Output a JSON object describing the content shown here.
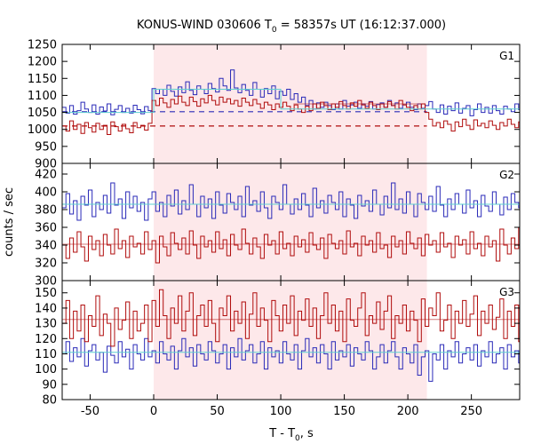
{
  "title": {
    "prefix": "KONUS-WIND 030606 T",
    "sub": "0",
    "suffix": " = 58357s UT (16:12:37.000)"
  },
  "xlabel": {
    "prefix": "T - T",
    "sub": "0",
    "suffix": ", s"
  },
  "ylabel": "counts / sec",
  "colors": {
    "red": "#b00c0c",
    "blue": "#2a2ab8",
    "fit": "#5fd0d0",
    "interval": "#fde8ea"
  },
  "chart_data": {
    "type": "line",
    "xlim": [
      -72,
      288
    ],
    "xticks": [
      -50,
      0,
      50,
      100,
      150,
      200,
      250
    ],
    "highlight_interval": [
      0,
      215
    ],
    "bin_width": 2.944,
    "panels": [
      {
        "label": "G1",
        "ylim": [
          900,
          1250
        ],
        "yticks": [
          900,
          950,
          1000,
          1050,
          1100,
          1150,
          1200,
          1250
        ],
        "background_dashed": {
          "blue": 1052,
          "red": 1010,
          "x_end": 215
        },
        "fit_lines": [
          {
            "color": "fit",
            "segments": [
              [
                -72,
                1050
              ],
              [
                0,
                1050
              ],
              [
                0,
                1118
              ],
              [
                100,
                1118
              ],
              [
                100,
                1060
              ],
              [
                288,
                1060
              ]
            ]
          },
          {
            "color": "red",
            "segments": [
              [
                110,
                1075
              ],
              [
                210,
                1075
              ]
            ]
          }
        ],
        "series": [
          {
            "color": "blue",
            "values": [
              1065,
              1048,
              1070,
              1045,
              1055,
              1080,
              1060,
              1050,
              1072,
              1045,
              1066,
              1054,
              1075,
              1043,
              1059,
              1070,
              1050,
              1062,
              1048,
              1071,
              1058,
              1046,
              1067,
              1055,
              1120,
              1105,
              1118,
              1100,
              1130,
              1112,
              1098,
              1125,
              1108,
              1140,
              1115,
              1102,
              1128,
              1118,
              1105,
              1135,
              1120,
              1110,
              1150,
              1128,
              1115,
              1175,
              1122,
              1108,
              1132,
              1115,
              1100,
              1138,
              1118,
              1095,
              1120,
              1105,
              1128,
              1090,
              1112,
              1100,
              1118,
              1088,
              1105,
              1080,
              1095,
              1070,
              1085,
              1060,
              1078,
              1065,
              1080,
              1070,
              1058,
              1075,
              1060,
              1085,
              1068,
              1072,
              1080,
              1062,
              1075,
              1068,
              1082,
              1060,
              1073,
              1078,
              1065,
              1085,
              1070,
              1078,
              1062,
              1072,
              1080,
              1065,
              1058,
              1075,
              1062,
              1070,
              1082,
              1060,
              1050,
              1072,
              1045,
              1068,
              1055,
              1078,
              1048,
              1062,
              1070,
              1040,
              1058,
              1075,
              1050,
              1065,
              1048,
              1070,
              1055,
              1045,
              1068,
              1060,
              1052,
              1075,
              1058
            ]
          },
          {
            "color": "red",
            "values": [
              1010,
              995,
              1025,
              1000,
              1015,
              988,
              1020,
              1005,
              992,
              1018,
              1000,
              1012,
              985,
              1022,
              1008,
              995,
              1015,
              1002,
              990,
              1020,
              1005,
              1012,
              998,
              1018,
              1085,
              1070,
              1092,
              1078,
              1065,
              1088,
              1075,
              1098,
              1080,
              1070,
              1095,
              1082,
              1068,
              1090,
              1078,
              1100,
              1085,
              1072,
              1095,
              1080,
              1090,
              1075,
              1085,
              1068,
              1092,
              1080,
              1070,
              1088,
              1075,
              1062,
              1080,
              1072,
              1058,
              1075,
              1065,
              1080,
              1068,
              1055,
              1072,
              1060,
              1050,
              1068,
              1055,
              1075,
              1062,
              1080,
              1070,
              1058,
              1075,
              1065,
              1082,
              1070,
              1060,
              1078,
              1068,
              1085,
              1072,
              1062,
              1080,
              1070,
              1058,
              1075,
              1065,
              1082,
              1070,
              1060,
              1085,
              1072,
              1065,
              1055,
              1070,
              1060,
              1075,
              1050,
              1030,
              1010,
              1020,
              1005,
              1025,
              1015,
              995,
              1022,
              1008,
              1030,
              1012,
              1000,
              1028,
              1010,
              1018,
              1005,
              1025,
              1012,
              1000,
              1020,
              1010,
              1030,
              1015,
              1005,
              1022
            ]
          }
        ]
      },
      {
        "label": "G2",
        "ylim": [
          300,
          432
        ],
        "yticks": [
          300,
          320,
          340,
          360,
          380,
          400,
          420
        ],
        "fit_lines": [
          {
            "color": "fit",
            "segments": [
              [
                -72,
                386
              ],
              [
                288,
                386
              ]
            ]
          },
          {
            "color": "red",
            "segments": [
              [
                -72,
                341
              ],
              [
                288,
                341
              ]
            ]
          }
        ],
        "series": [
          {
            "color": "blue",
            "values": [
              382,
              398,
              375,
              390,
              368,
              395,
              385,
              402,
              372,
              388,
              380,
              396,
              376,
              410,
              385,
              392,
              370,
              400,
              382,
              395,
              378,
              388,
              368,
              392,
              400,
              378,
              388,
              372,
              396,
              384,
              402,
              375,
              390,
              380,
              408,
              386,
              372,
              395,
              382,
              392,
              370,
              400,
              385,
              376,
              398,
              388,
              380,
              395,
              372,
              406,
              385,
              390,
              378,
              400,
              382,
              370,
              395,
              388,
              380,
              408,
              386,
              375,
              392,
              380,
              398,
              385,
              372,
              404,
              382,
              390,
              376,
              396,
              388,
              380,
              400,
              372,
              392,
              385,
              370,
              396,
              384,
              390,
              378,
              402,
              386,
              374,
              395,
              382,
              410,
              380,
              392,
              376,
              400,
              386,
              372,
              398,
              388,
              380,
              395,
              378,
              406,
              385,
              372,
              392,
              380,
              398,
              386,
              376,
              402,
              382,
              390,
              372,
              396,
              384,
              378,
              400,
              386,
              374,
              394,
              380,
              398,
              388,
              382
            ]
          },
          {
            "color": "red",
            "values": [
              340,
              325,
              348,
              332,
              355,
              338,
              322,
              350,
              335,
              345,
              328,
              352,
              340,
              330,
              358,
              336,
              345,
              326,
              350,
              338,
              342,
              330,
              355,
              335,
              345,
              320,
              350,
              338,
              328,
              354,
              342,
              335,
              348,
              330,
              356,
              340,
              325,
              350,
              338,
              345,
              332,
              355,
              336,
              346,
              328,
              352,
              340,
              335,
              358,
              342,
              330,
              348,
              338,
              325,
              352,
              340,
              345,
              330,
              355,
              336,
              342,
              328,
              350,
              338,
              346,
              332,
              354,
              340,
              335,
              348,
              325,
              352,
              342,
              336,
              345,
              330,
              356,
              338,
              342,
              328,
              350,
              340,
              345,
              332,
              354,
              336,
              340,
              326,
              350,
              338,
              345,
              330,
              355,
              342,
              336,
              348,
              328,
              352,
              340,
              345,
              332,
              354,
              338,
              342,
              326,
              350,
              340,
              346,
              330,
              355,
              336,
              342,
              328,
              350,
              338,
              345,
              322,
              358,
              340,
              330,
              348,
              336,
              360
            ]
          }
        ]
      },
      {
        "label": "G3",
        "ylim": [
          80,
          158
        ],
        "yticks": [
          80,
          90,
          100,
          110,
          120,
          130,
          140,
          150
        ],
        "fit_lines": [
          {
            "color": "fit",
            "segments": [
              [
                -72,
                111
              ],
              [
                288,
                111
              ]
            ]
          },
          {
            "color": "red",
            "segments": [
              [
                -72,
                132.5
              ],
              [
                288,
                132.5
              ]
            ]
          }
        ],
        "series": [
          {
            "color": "blue",
            "values": [
              110,
              118,
              105,
              114,
              108,
              120,
              102,
              112,
              116,
              106,
              111,
              98,
              115,
              109,
              104,
              118,
              108,
              113,
              100,
              116,
              110,
              106,
              120,
              108,
              112,
              104,
              118,
              110,
              106,
              115,
              100,
              112,
              120,
              108,
              114,
              102,
              116,
              110,
              106,
              118,
              112,
              104,
              110,
              116,
              100,
              114,
              108,
              120,
              106,
              112,
              116,
              104,
              110,
              118,
              100,
              114,
              108,
              112,
              104,
              118,
              110,
              106,
              116,
              100,
              112,
              120,
              108,
              114,
              104,
              116,
              110,
              100,
              118,
              106,
              112,
              108,
              116,
              102,
              114,
              110,
              106,
              118,
              112,
              100,
              108,
              116,
              104,
              112,
              118,
              108,
              100,
              114,
              110,
              104,
              116,
              96,
              108,
              112,
              92,
              110,
              106,
              116,
              100,
              112,
              108,
              118,
              104,
              110,
              114,
              106,
              116,
              102,
              112,
              108,
              118,
              104,
              110,
              114,
              100,
              116,
              108,
              112,
              104
            ]
          },
          {
            "color": "red",
            "values": [
              130,
              145,
              120,
              138,
              125,
              142,
              118,
              135,
              128,
              148,
              122,
              136,
              130,
              115,
              140,
              126,
              132,
              144,
              120,
              138,
              125,
              130,
              142,
              118,
              145,
              128,
              152,
              135,
              120,
              140,
              130,
              148,
              125,
              138,
              150,
              122,
              135,
              142,
              128,
              145,
              130,
              118,
              140,
              135,
              148,
              125,
              138,
              130,
              144,
              120,
              136,
              150,
              128,
              140,
              132,
              118,
              145,
              135,
              125,
              142,
              130,
              148,
              122,
              138,
              132,
              146,
              128,
              140,
              120,
              135,
              150,
              130,
              142,
              125,
              138,
              118,
              146,
              132,
              128,
              140,
              150,
              122,
              135,
              130,
              144,
              126,
              138,
              148,
              120,
              135,
              130,
              142,
              125,
              138,
              132,
              118,
              146,
              128,
              140,
              135,
              150,
              125,
              132,
              142,
              120,
              138,
              130,
              145,
              128,
              136,
              148,
              122,
              138,
              130,
              142,
              126,
              134,
              146,
              120,
              138,
              128,
              142,
              118
            ]
          }
        ]
      }
    ]
  }
}
